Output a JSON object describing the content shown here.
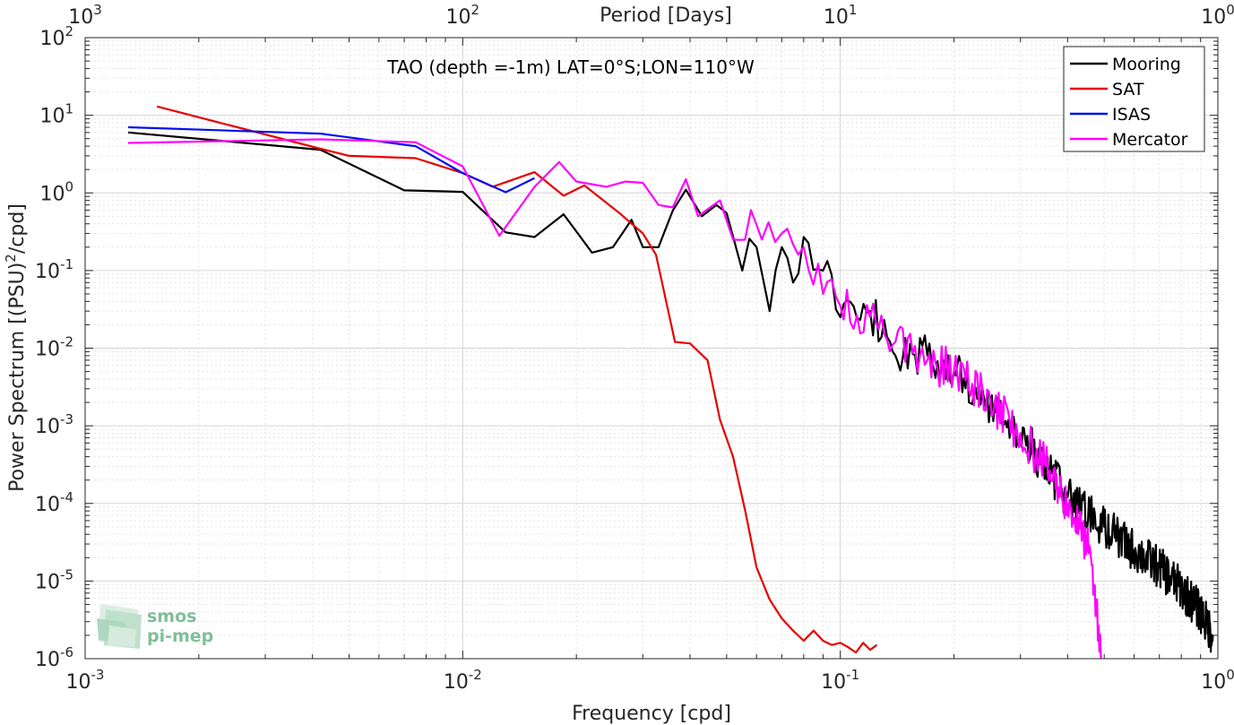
{
  "chart_data": {
    "type": "line",
    "title": "TAO (depth =-1m) LAT=0°S;LON=110°W",
    "xlabel": "Frequency [cpd]",
    "ylabel_parts": {
      "base": "Power Spectrum [(PSU)",
      "sup": "2",
      "tail": "/cpd]"
    },
    "top_xlabel": "Period [Days]",
    "xscale": "log",
    "yscale": "log",
    "xlim": [
      0.001,
      1
    ],
    "ylim": [
      1e-06,
      100
    ],
    "grid": true,
    "legend_position": "top-right",
    "x_ticks": [
      {
        "value": 0.001,
        "base": "10",
        "exp": "-3"
      },
      {
        "value": 0.01,
        "base": "10",
        "exp": "-2"
      },
      {
        "value": 0.1,
        "base": "10",
        "exp": "-1"
      },
      {
        "value": 1,
        "base": "10",
        "exp": "0"
      }
    ],
    "top_ticks": [
      {
        "period": 1000,
        "base": "10",
        "exp": "3"
      },
      {
        "period": 100,
        "base": "10",
        "exp": "2"
      },
      {
        "period": 10,
        "base": "10",
        "exp": "1"
      },
      {
        "period": 1,
        "base": "10",
        "exp": "0"
      }
    ],
    "y_ticks": [
      {
        "value": 100,
        "base": "10",
        "exp": "2"
      },
      {
        "value": 10,
        "base": "10",
        "exp": "1"
      },
      {
        "value": 1,
        "base": "10",
        "exp": "0"
      },
      {
        "value": 0.1,
        "base": "10",
        "exp": "-1"
      },
      {
        "value": 0.01,
        "base": "10",
        "exp": "-2"
      },
      {
        "value": 0.001,
        "base": "10",
        "exp": "-3"
      },
      {
        "value": 0.0001,
        "base": "10",
        "exp": "-4"
      },
      {
        "value": 1e-05,
        "base": "10",
        "exp": "-5"
      },
      {
        "value": 1e-06,
        "base": "10",
        "exp": "-6"
      }
    ],
    "series": [
      {
        "name": "Mooring",
        "color": "#000000",
        "noisy": true,
        "tail_floor": 1e-06,
        "points": [
          [
            0.0013,
            6.0
          ],
          [
            0.0042,
            3.6
          ],
          [
            0.007,
            1.08
          ],
          [
            0.01,
            1.03
          ],
          [
            0.013,
            0.31
          ],
          [
            0.0155,
            0.27
          ],
          [
            0.0185,
            0.53
          ],
          [
            0.022,
            0.17
          ],
          [
            0.025,
            0.2
          ],
          [
            0.028,
            0.45
          ],
          [
            0.03,
            0.2
          ],
          [
            0.033,
            0.2
          ],
          [
            0.036,
            0.59
          ],
          [
            0.039,
            1.1
          ],
          [
            0.043,
            0.5
          ],
          [
            0.047,
            0.7
          ],
          [
            0.05,
            0.55
          ],
          [
            0.055,
            0.1
          ],
          [
            0.06,
            0.2
          ],
          [
            0.065,
            0.03
          ],
          [
            0.07,
            0.2
          ],
          [
            0.075,
            0.07
          ],
          [
            0.08,
            0.27
          ],
          [
            0.09,
            0.1
          ],
          [
            0.1,
            0.025
          ],
          [
            0.12,
            0.03
          ],
          [
            0.14,
            0.008
          ],
          [
            0.17,
            0.008
          ],
          [
            0.2,
            0.005
          ],
          [
            0.25,
            0.002
          ],
          [
            0.3,
            0.0008
          ],
          [
            0.35,
            0.0003
          ],
          [
            0.4,
            0.00012
          ],
          [
            0.5,
            5e-05
          ],
          [
            0.6,
            2.5e-05
          ],
          [
            0.7,
            1.5e-05
          ],
          [
            0.8,
            8e-06
          ],
          [
            0.9,
            4e-06
          ],
          [
            0.97,
            2e-06
          ]
        ]
      },
      {
        "name": "SAT",
        "color": "#e60000",
        "noisy": false,
        "points": [
          [
            0.00155,
            13
          ],
          [
            0.0042,
            3.7
          ],
          [
            0.005,
            3.0
          ],
          [
            0.0075,
            2.8
          ],
          [
            0.01,
            1.8
          ],
          [
            0.012,
            1.2
          ],
          [
            0.0155,
            1.85
          ],
          [
            0.0185,
            0.92
          ],
          [
            0.021,
            1.25
          ],
          [
            0.026,
            0.55
          ],
          [
            0.03,
            0.3
          ],
          [
            0.0325,
            0.16
          ],
          [
            0.0365,
            0.012
          ],
          [
            0.04,
            0.0115
          ],
          [
            0.0445,
            0.007
          ],
          [
            0.048,
            0.0012
          ],
          [
            0.052,
            0.0004
          ],
          [
            0.056,
            8e-05
          ],
          [
            0.06,
            1.5e-05
          ],
          [
            0.065,
            5.8e-06
          ],
          [
            0.07,
            3.3e-06
          ],
          [
            0.075,
            2.3e-06
          ],
          [
            0.08,
            1.7e-06
          ],
          [
            0.085,
            2.3e-06
          ],
          [
            0.09,
            1.7e-06
          ],
          [
            0.095,
            1.5e-06
          ],
          [
            0.1,
            1.6e-06
          ],
          [
            0.105,
            1.4e-06
          ],
          [
            0.11,
            1.2e-06
          ],
          [
            0.115,
            1.6e-06
          ],
          [
            0.12,
            1.3e-06
          ],
          [
            0.125,
            1.5e-06
          ]
        ]
      },
      {
        "name": "ISAS",
        "color": "#0010ee",
        "noisy": false,
        "points": [
          [
            0.0013,
            7.0
          ],
          [
            0.0042,
            5.8
          ],
          [
            0.0075,
            4.0
          ],
          [
            0.01,
            1.8
          ],
          [
            0.013,
            1.02
          ],
          [
            0.0155,
            1.55
          ]
        ]
      },
      {
        "name": "Mercator",
        "color": "#ff00ff",
        "noisy": true,
        "tail_floor": 1e-06,
        "tail_end": 0.49,
        "points": [
          [
            0.0013,
            4.4
          ],
          [
            0.0042,
            4.9
          ],
          [
            0.0075,
            4.5
          ],
          [
            0.01,
            2.2
          ],
          [
            0.0125,
            0.28
          ],
          [
            0.0155,
            1.2
          ],
          [
            0.018,
            2.5
          ],
          [
            0.02,
            1.4
          ],
          [
            0.024,
            1.2
          ],
          [
            0.027,
            1.4
          ],
          [
            0.03,
            1.35
          ],
          [
            0.033,
            0.7
          ],
          [
            0.036,
            0.65
          ],
          [
            0.039,
            1.5
          ],
          [
            0.042,
            0.5
          ],
          [
            0.048,
            0.8
          ],
          [
            0.052,
            0.25
          ],
          [
            0.058,
            0.6
          ],
          [
            0.062,
            0.25
          ],
          [
            0.07,
            0.3
          ],
          [
            0.08,
            0.2
          ],
          [
            0.09,
            0.05
          ],
          [
            0.1,
            0.035
          ],
          [
            0.12,
            0.025
          ],
          [
            0.14,
            0.012
          ],
          [
            0.17,
            0.007
          ],
          [
            0.2,
            0.005
          ],
          [
            0.25,
            0.002
          ],
          [
            0.3,
            0.0008
          ],
          [
            0.35,
            0.0003
          ],
          [
            0.4,
            0.0001
          ],
          [
            0.45,
            3e-05
          ],
          [
            0.47,
            8e-06
          ],
          [
            0.49,
            1e-06
          ]
        ]
      }
    ]
  },
  "logo": {
    "line1": "smos",
    "line2": "pi-mep"
  }
}
